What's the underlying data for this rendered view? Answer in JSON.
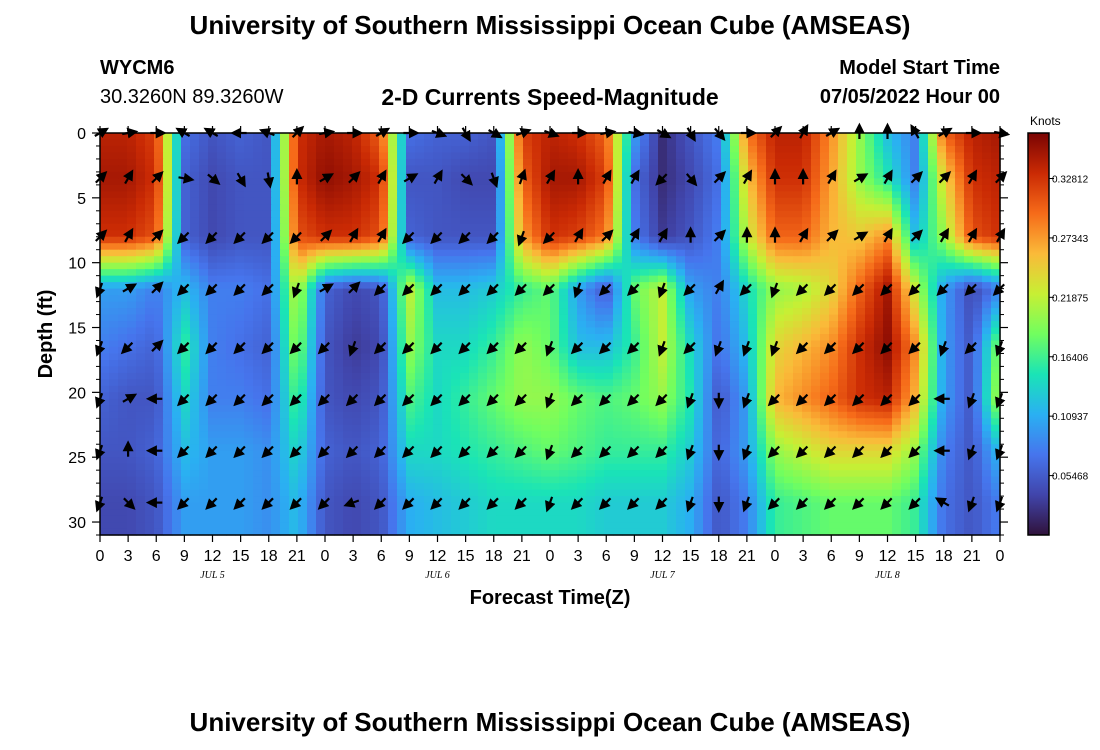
{
  "header": {
    "title": "University of Southern Mississippi Ocean Cube (AMSEAS)",
    "station_id": "WYCM6",
    "station_coords": "30.3260N  89.3260W",
    "subtitle": "2-D Currents Speed-Magnitude",
    "model_start_label": "Model Start Time",
    "model_start_value": "07/05/2022 Hour 00"
  },
  "footer": {
    "title": "University of Southern Mississippi Ocean Cube (AMSEAS)"
  },
  "chart_data": {
    "type": "heatmap",
    "title": "2-D Currents Speed-Magnitude",
    "xlabel": "Forecast Time(Z)",
    "ylabel": "Depth (ft)",
    "x_ticks": [
      "0",
      "3",
      "6",
      "9",
      "12",
      "15",
      "18",
      "21",
      "0",
      "3",
      "6",
      "9",
      "12",
      "15",
      "18",
      "21",
      "0",
      "3",
      "6",
      "9",
      "12",
      "15",
      "18",
      "21",
      "0",
      "3",
      "6",
      "9",
      "12",
      "15",
      "18",
      "21",
      "0"
    ],
    "x_range_hours": [
      0,
      96
    ],
    "date_labels": [
      {
        "label": "JUL 5",
        "hour": 12
      },
      {
        "label": "JUL 6",
        "hour": 36
      },
      {
        "label": "JUL 7",
        "hour": 60
      },
      {
        "label": "JUL 8",
        "hour": 84
      }
    ],
    "y_ticks": [
      0,
      5,
      10,
      15,
      20,
      25,
      30
    ],
    "y_range": [
      0,
      31
    ],
    "y_inverted": true,
    "colorbar": {
      "unit": "Knots",
      "range": [
        0,
        0.37
      ],
      "ticks": [
        "0.05468",
        "0.10937",
        "0.16406",
        "0.21875",
        "0.27343",
        "0.32812"
      ],
      "tick_values": [
        0.05468,
        0.10937,
        0.16406,
        0.21875,
        0.27343,
        0.32812
      ]
    },
    "hours": [
      0,
      3,
      6,
      9,
      12,
      15,
      18,
      21,
      24,
      27,
      30,
      33,
      36,
      39,
      42,
      45,
      48,
      51,
      54,
      57,
      60,
      63,
      66,
      69,
      72,
      75,
      78,
      81,
      84,
      87,
      90,
      93,
      96
    ],
    "depths": [
      0,
      3.5,
      8,
      12,
      16.5,
      20.5,
      24.5,
      28.5
    ],
    "speed_knots": [
      [
        0.34,
        0.34,
        0.32,
        0.07,
        0.05,
        0.06,
        0.05,
        0.33,
        0.35,
        0.34,
        0.3,
        0.07,
        0.06,
        0.06,
        0.05,
        0.32,
        0.34,
        0.33,
        0.3,
        0.1,
        0.02,
        0.05,
        0.08,
        0.29,
        0.34,
        0.34,
        0.28,
        0.2,
        0.12,
        0.08,
        0.3,
        0.34,
        0.35
      ],
      [
        0.35,
        0.35,
        0.33,
        0.06,
        0.04,
        0.05,
        0.05,
        0.33,
        0.36,
        0.35,
        0.33,
        0.05,
        0.05,
        0.04,
        0.04,
        0.3,
        0.35,
        0.35,
        0.32,
        0.07,
        0.02,
        0.04,
        0.07,
        0.25,
        0.33,
        0.33,
        0.27,
        0.2,
        0.15,
        0.08,
        0.24,
        0.33,
        0.34
      ],
      [
        0.33,
        0.33,
        0.31,
        0.06,
        0.04,
        0.05,
        0.05,
        0.31,
        0.33,
        0.33,
        0.31,
        0.06,
        0.05,
        0.05,
        0.05,
        0.27,
        0.33,
        0.32,
        0.29,
        0.08,
        0.03,
        0.05,
        0.08,
        0.22,
        0.3,
        0.3,
        0.26,
        0.25,
        0.28,
        0.12,
        0.2,
        0.31,
        0.33
      ],
      [
        0.1,
        0.1,
        0.08,
        0.12,
        0.08,
        0.08,
        0.07,
        0.22,
        0.06,
        0.04,
        0.05,
        0.22,
        0.12,
        0.12,
        0.13,
        0.16,
        0.18,
        0.1,
        0.05,
        0.18,
        0.22,
        0.1,
        0.08,
        0.14,
        0.2,
        0.21,
        0.24,
        0.3,
        0.35,
        0.22,
        0.1,
        0.04,
        0.08
      ],
      [
        0.08,
        0.07,
        0.06,
        0.16,
        0.08,
        0.07,
        0.06,
        0.2,
        0.05,
        0.03,
        0.04,
        0.2,
        0.14,
        0.14,
        0.16,
        0.2,
        0.18,
        0.12,
        0.12,
        0.16,
        0.22,
        0.14,
        0.07,
        0.12,
        0.24,
        0.26,
        0.28,
        0.33,
        0.36,
        0.28,
        0.1,
        0.05,
        0.2
      ],
      [
        0.06,
        0.05,
        0.05,
        0.14,
        0.08,
        0.08,
        0.07,
        0.17,
        0.05,
        0.04,
        0.05,
        0.17,
        0.14,
        0.16,
        0.18,
        0.2,
        0.2,
        0.18,
        0.17,
        0.18,
        0.2,
        0.15,
        0.05,
        0.1,
        0.26,
        0.28,
        0.3,
        0.33,
        0.34,
        0.26,
        0.1,
        0.05,
        0.22
      ],
      [
        0.05,
        0.05,
        0.06,
        0.12,
        0.1,
        0.1,
        0.09,
        0.14,
        0.06,
        0.05,
        0.06,
        0.14,
        0.14,
        0.15,
        0.16,
        0.17,
        0.18,
        0.17,
        0.16,
        0.16,
        0.16,
        0.13,
        0.06,
        0.1,
        0.2,
        0.22,
        0.24,
        0.24,
        0.24,
        0.2,
        0.08,
        0.05,
        0.12
      ],
      [
        0.04,
        0.04,
        0.05,
        0.1,
        0.1,
        0.1,
        0.09,
        0.12,
        0.05,
        0.04,
        0.05,
        0.11,
        0.12,
        0.13,
        0.14,
        0.14,
        0.14,
        0.14,
        0.13,
        0.13,
        0.13,
        0.11,
        0.05,
        0.08,
        0.16,
        0.17,
        0.18,
        0.18,
        0.18,
        0.16,
        0.07,
        0.05,
        0.08
      ]
    ],
    "direction_deg": [
      [
        60,
        80,
        90,
        300,
        300,
        270,
        290,
        45,
        80,
        90,
        60,
        90,
        110,
        150,
        120,
        70,
        110,
        90,
        80,
        100,
        120,
        150,
        140,
        90,
        45,
        30,
        60,
        0,
        0,
        330,
        60,
        90,
        100
      ],
      [
        45,
        30,
        45,
        100,
        130,
        150,
        170,
        0,
        60,
        45,
        30,
        60,
        30,
        135,
        160,
        20,
        30,
        0,
        30,
        30,
        225,
        140,
        45,
        30,
        0,
        0,
        30,
        60,
        30,
        45,
        45,
        30,
        45
      ],
      [
        45,
        30,
        45,
        225,
        225,
        225,
        225,
        225,
        45,
        30,
        30,
        225,
        225,
        225,
        225,
        200,
        225,
        30,
        45,
        30,
        30,
        0,
        45,
        0,
        0,
        30,
        45,
        60,
        30,
        45,
        30,
        30,
        30
      ],
      [
        200,
        60,
        45,
        225,
        225,
        225,
        225,
        200,
        60,
        45,
        225,
        225,
        225,
        225,
        225,
        225,
        225,
        200,
        225,
        225,
        200,
        225,
        30,
        225,
        200,
        225,
        225,
        225,
        225,
        225,
        225,
        225,
        225
      ],
      [
        200,
        225,
        45,
        225,
        225,
        225,
        225,
        225,
        225,
        200,
        225,
        225,
        225,
        225,
        225,
        225,
        200,
        225,
        225,
        225,
        200,
        225,
        200,
        200,
        200,
        225,
        225,
        225,
        225,
        225,
        200,
        225,
        200
      ],
      [
        200,
        60,
        270,
        225,
        225,
        225,
        225,
        225,
        225,
        225,
        225,
        225,
        225,
        225,
        225,
        225,
        200,
        225,
        225,
        225,
        225,
        200,
        180,
        200,
        225,
        225,
        225,
        225,
        225,
        225,
        270,
        200,
        200
      ],
      [
        200,
        0,
        270,
        225,
        225,
        225,
        225,
        225,
        225,
        225,
        225,
        225,
        225,
        225,
        225,
        225,
        200,
        225,
        225,
        225,
        225,
        200,
        180,
        200,
        225,
        225,
        225,
        225,
        225,
        225,
        270,
        200,
        200
      ],
      [
        200,
        135,
        270,
        225,
        225,
        225,
        225,
        225,
        225,
        250,
        225,
        225,
        225,
        225,
        225,
        225,
        200,
        225,
        225,
        225,
        225,
        200,
        180,
        200,
        225,
        225,
        225,
        225,
        225,
        225,
        300,
        200,
        200
      ]
    ]
  }
}
